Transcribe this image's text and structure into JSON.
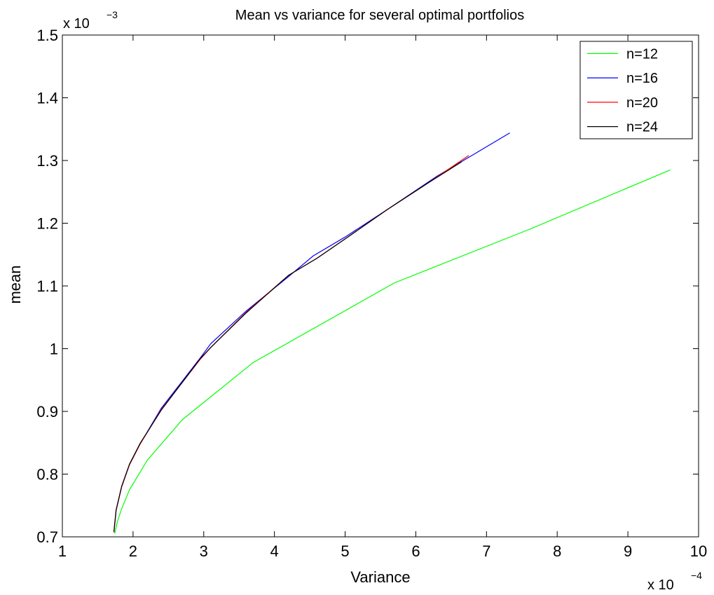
{
  "chart_data": {
    "type": "line",
    "title": "Mean vs variance for several optimal portfolios",
    "xlabel": "Variance",
    "ylabel": "mean",
    "x_multiplier_base": "x 10",
    "x_multiplier_exp": "−4",
    "y_multiplier_base": "x 10",
    "y_multiplier_exp": "−3",
    "xlim": [
      1,
      10
    ],
    "ylim": [
      0.7,
      1.5
    ],
    "x_ticks": [
      1,
      2,
      3,
      4,
      5,
      6,
      7,
      8,
      9,
      10
    ],
    "x_tick_labels": [
      "1",
      "2",
      "3",
      "4",
      "5",
      "6",
      "7",
      "8",
      "9",
      "10"
    ],
    "y_ticks": [
      0.7,
      0.8,
      0.9,
      1.0,
      1.1,
      1.2,
      1.3,
      1.4,
      1.5
    ],
    "y_tick_labels": [
      "0.7",
      "0.8",
      "0.9",
      "1",
      "1.1",
      "1.2",
      "1.3",
      "1.4",
      "1.5"
    ],
    "grid": false,
    "legend_position": "top-right",
    "series": [
      {
        "name": "n=12",
        "color": "#00ff00",
        "x": [
          1.74,
          1.78,
          1.84,
          1.95,
          2.2,
          2.7,
          3.7,
          5.7,
          7.6,
          9.6
        ],
        "y": [
          0.705,
          0.725,
          0.745,
          0.775,
          0.822,
          0.887,
          0.978,
          1.105,
          1.19,
          1.285
        ]
      },
      {
        "name": "n=16",
        "color": "#0000ff",
        "x": [
          1.73,
          1.76,
          1.84,
          1.95,
          2.1,
          2.4,
          2.95,
          3.1,
          3.6,
          4.2,
          4.55,
          5.0,
          5.6,
          6.3,
          7.33
        ],
        "y": [
          0.708,
          0.742,
          0.78,
          0.815,
          0.848,
          0.905,
          0.985,
          1.008,
          1.06,
          1.115,
          1.148,
          1.178,
          1.222,
          1.275,
          1.344
        ]
      },
      {
        "name": "n=20",
        "color": "#ff0000",
        "x": [
          1.73,
          1.76,
          1.84,
          1.95,
          2.1,
          2.4,
          2.95,
          3.1,
          3.6,
          4.2,
          4.6,
          5.0,
          5.6,
          6.2,
          6.75
        ],
        "y": [
          0.707,
          0.742,
          0.78,
          0.815,
          0.848,
          0.903,
          0.983,
          1.002,
          1.058,
          1.117,
          1.144,
          1.175,
          1.222,
          1.266,
          1.308
        ]
      },
      {
        "name": "n=24",
        "color": "#000000",
        "x": [
          1.73,
          1.76,
          1.84,
          1.95,
          2.1,
          2.4,
          2.95,
          3.1,
          3.6,
          4.2,
          4.6,
          5.0,
          5.6,
          6.2,
          6.65
        ],
        "y": [
          0.708,
          0.743,
          0.781,
          0.816,
          0.849,
          0.902,
          0.984,
          1.002,
          1.057,
          1.117,
          1.144,
          1.175,
          1.222,
          1.266,
          1.298
        ]
      }
    ]
  }
}
